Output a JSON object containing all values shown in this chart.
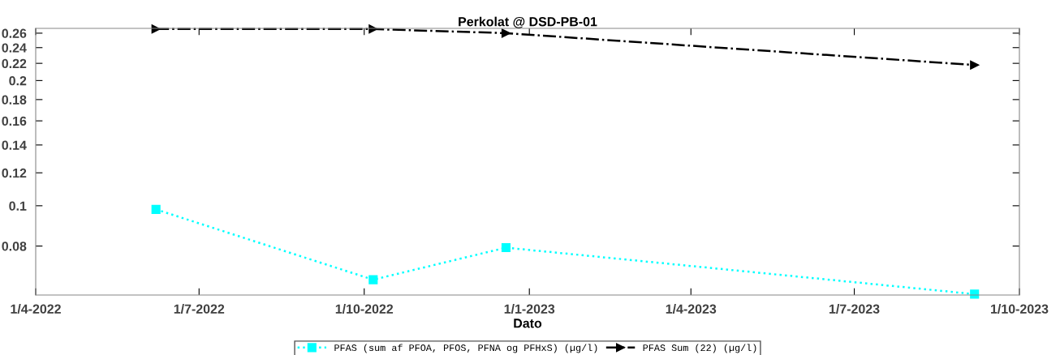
{
  "chart_data": {
    "type": "line",
    "title": "Perkolat @ DSD-PB-01",
    "xlabel": "Dato",
    "log": "y",
    "grid": false,
    "legend": "bottom",
    "xlim": [
      "2022-04-01",
      "2023-10-01"
    ],
    "xticks": [
      {
        "value": "2022-04-01",
        "label": "1/4-2022"
      },
      {
        "value": "2022-07-01",
        "label": "1/7-2022"
      },
      {
        "value": "2022-10-01",
        "label": "1/10-2022"
      },
      {
        "value": "2023-01-01",
        "label": "1/1-2023"
      },
      {
        "value": "2023-04-01",
        "label": "1/4-2023"
      },
      {
        "value": "2023-07-01",
        "label": "1/7-2023"
      },
      {
        "value": "2023-10-01",
        "label": "1/10-2023"
      }
    ],
    "ylim": [
      0.061,
      0.267
    ],
    "yticks": [
      0.08,
      0.1,
      0.12,
      0.14,
      0.16,
      0.18,
      0.2,
      0.22,
      0.24,
      0.26
    ],
    "series": [
      {
        "name": "PFAS (sum af PFOA, PFOS, PFNA og PFHxS) (µg/l)",
        "color": "#00ffff",
        "marker": "square",
        "line_style": "dotted",
        "x": [
          "2022-06-07",
          "2022-10-06",
          "2022-12-19",
          "2023-09-06"
        ],
        "values": [
          0.098,
          0.0664,
          0.0793,
          0.0613
        ]
      },
      {
        "name": "PFAS Sum (22) (µg/l)",
        "color": "#000000",
        "marker": "triangle",
        "line_style": "dashdot",
        "x": [
          "2022-06-07",
          "2022-10-06",
          "2022-12-19",
          "2023-09-06"
        ],
        "values": [
          0.266,
          0.266,
          0.26,
          0.218
        ]
      }
    ]
  }
}
